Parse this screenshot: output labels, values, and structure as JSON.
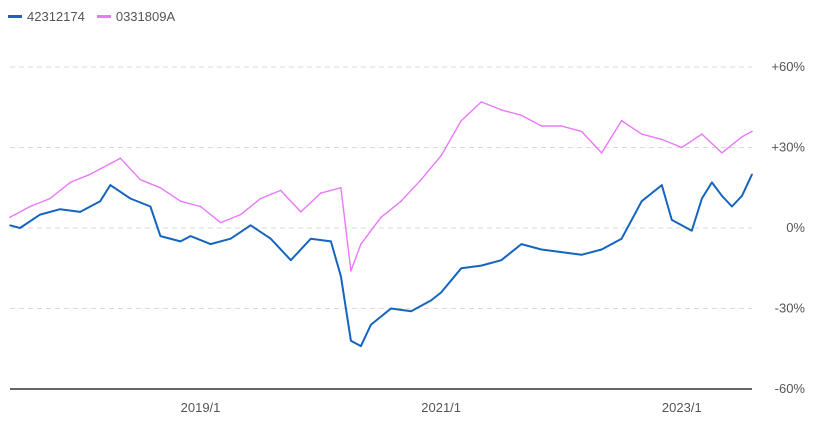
{
  "chart_data": {
    "type": "line",
    "x_tick_labels": [
      "2019/1",
      "2021/1",
      "2023/1"
    ],
    "y_tick_labels": [
      "+60%",
      "+30%",
      "0%",
      "-30%",
      "-60%"
    ],
    "y_ticks": [
      60,
      30,
      0,
      -30,
      -60
    ],
    "ylim": [
      -60,
      60
    ],
    "xlim": [
      "2017-06",
      "2023-08"
    ],
    "grid": true,
    "legend_position": "top-left",
    "series": [
      {
        "name": "42312174",
        "color": "#1565c0",
        "points": [
          [
            "2017-06",
            1
          ],
          [
            "2017-07",
            0
          ],
          [
            "2017-09",
            5
          ],
          [
            "2017-11",
            7
          ],
          [
            "2018-01",
            6
          ],
          [
            "2018-03",
            10
          ],
          [
            "2018-04",
            16
          ],
          [
            "2018-06",
            11
          ],
          [
            "2018-08",
            8
          ],
          [
            "2018-09",
            -3
          ],
          [
            "2018-11",
            -5
          ],
          [
            "2018-12",
            -3
          ],
          [
            "2019-02",
            -6
          ],
          [
            "2019-04",
            -4
          ],
          [
            "2019-06",
            1
          ],
          [
            "2019-08",
            -4
          ],
          [
            "2019-10",
            -12
          ],
          [
            "2019-12",
            -4
          ],
          [
            "2020-02",
            -5
          ],
          [
            "2020-03",
            -18
          ],
          [
            "2020-04",
            -42
          ],
          [
            "2020-05",
            -44
          ],
          [
            "2020-06",
            -36
          ],
          [
            "2020-08",
            -30
          ],
          [
            "2020-10",
            -31
          ],
          [
            "2020-12",
            -27
          ],
          [
            "2021-01",
            -24
          ],
          [
            "2021-03",
            -15
          ],
          [
            "2021-05",
            -14
          ],
          [
            "2021-07",
            -12
          ],
          [
            "2021-09",
            -6
          ],
          [
            "2021-11",
            -8
          ],
          [
            "2022-01",
            -9
          ],
          [
            "2022-03",
            -10
          ],
          [
            "2022-05",
            -8
          ],
          [
            "2022-07",
            -4
          ],
          [
            "2022-09",
            10
          ],
          [
            "2022-11",
            16
          ],
          [
            "2022-12",
            3
          ],
          [
            "2023-02",
            -1
          ],
          [
            "2023-03",
            11
          ],
          [
            "2023-04",
            17
          ],
          [
            "2023-05",
            12
          ],
          [
            "2023-06",
            8
          ],
          [
            "2023-07",
            12
          ],
          [
            "2023-08",
            20
          ]
        ]
      },
      {
        "name": "0331809A",
        "color": "#e879f9",
        "points": [
          [
            "2017-06",
            4
          ],
          [
            "2017-08",
            8
          ],
          [
            "2017-10",
            11
          ],
          [
            "2017-12",
            17
          ],
          [
            "2018-02",
            20
          ],
          [
            "2018-04",
            24
          ],
          [
            "2018-05",
            26
          ],
          [
            "2018-07",
            18
          ],
          [
            "2018-09",
            15
          ],
          [
            "2018-11",
            10
          ],
          [
            "2019-01",
            8
          ],
          [
            "2019-03",
            2
          ],
          [
            "2019-05",
            5
          ],
          [
            "2019-07",
            11
          ],
          [
            "2019-09",
            14
          ],
          [
            "2019-11",
            6
          ],
          [
            "2020-01",
            13
          ],
          [
            "2020-03",
            15
          ],
          [
            "2020-04",
            -16
          ],
          [
            "2020-05",
            -6
          ],
          [
            "2020-07",
            4
          ],
          [
            "2020-09",
            10
          ],
          [
            "2020-11",
            18
          ],
          [
            "2021-01",
            27
          ],
          [
            "2021-03",
            40
          ],
          [
            "2021-05",
            47
          ],
          [
            "2021-07",
            44
          ],
          [
            "2021-09",
            42
          ],
          [
            "2021-11",
            38
          ],
          [
            "2022-01",
            38
          ],
          [
            "2022-03",
            36
          ],
          [
            "2022-05",
            28
          ],
          [
            "2022-07",
            40
          ],
          [
            "2022-09",
            35
          ],
          [
            "2022-11",
            33
          ],
          [
            "2023-01",
            30
          ],
          [
            "2023-03",
            35
          ],
          [
            "2023-05",
            28
          ],
          [
            "2023-07",
            34
          ],
          [
            "2023-08",
            36
          ]
        ]
      }
    ]
  }
}
